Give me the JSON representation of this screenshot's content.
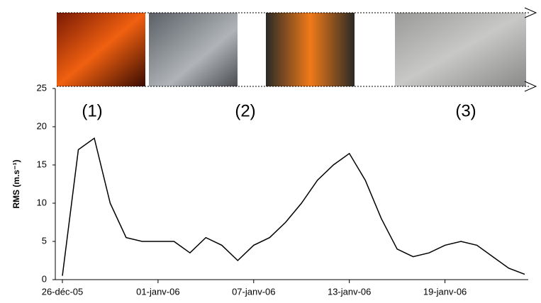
{
  "chart_data": {
    "type": "line",
    "y_label": "RMS (m.s⁻¹)",
    "annotations": [
      "(1)",
      "(2)",
      "(3)"
    ],
    "x": [
      "2005-12-26",
      "2005-12-27",
      "2005-12-28",
      "2005-12-29",
      "2005-12-30",
      "2005-12-31",
      "2006-01-01",
      "2006-01-02",
      "2006-01-03",
      "2006-01-04",
      "2006-01-05",
      "2006-01-06",
      "2006-01-07",
      "2006-01-08",
      "2006-01-09",
      "2006-01-10",
      "2006-01-11",
      "2006-01-12",
      "2006-01-13",
      "2006-01-14",
      "2006-01-15",
      "2006-01-16",
      "2006-01-17",
      "2006-01-18",
      "2006-01-19",
      "2006-01-20",
      "2006-01-21",
      "2006-01-22",
      "2006-01-23",
      "2006-01-24"
    ],
    "series": [
      {
        "color": "#000000",
        "values": [
          0.5,
          17,
          18.5,
          10,
          5.5,
          5,
          5,
          5,
          3.5,
          5.5,
          4.5,
          2.5,
          4.5,
          5.5,
          7.5,
          10,
          13,
          15,
          16.5,
          13,
          8,
          4,
          3,
          3.5,
          4.5,
          5,
          4.5,
          3,
          1.5,
          0.7
        ]
      }
    ],
    "xlim": [
      "2005-12-26",
      "2006-01-24"
    ],
    "xticks": [
      {
        "value": "2005-12-26",
        "label": "26-déc-05"
      },
      {
        "value": "2006-01-01",
        "label": "01-janv-06"
      },
      {
        "value": "2006-01-07",
        "label": "07-janv-06"
      },
      {
        "value": "2006-01-13",
        "label": "13-janv-06"
      },
      {
        "value": "2006-01-19",
        "label": "19-janv-06"
      }
    ],
    "ylim": [
      0,
      25
    ],
    "yticks": [
      0,
      5,
      10,
      15,
      20,
      25
    ],
    "grid": false
  }
}
